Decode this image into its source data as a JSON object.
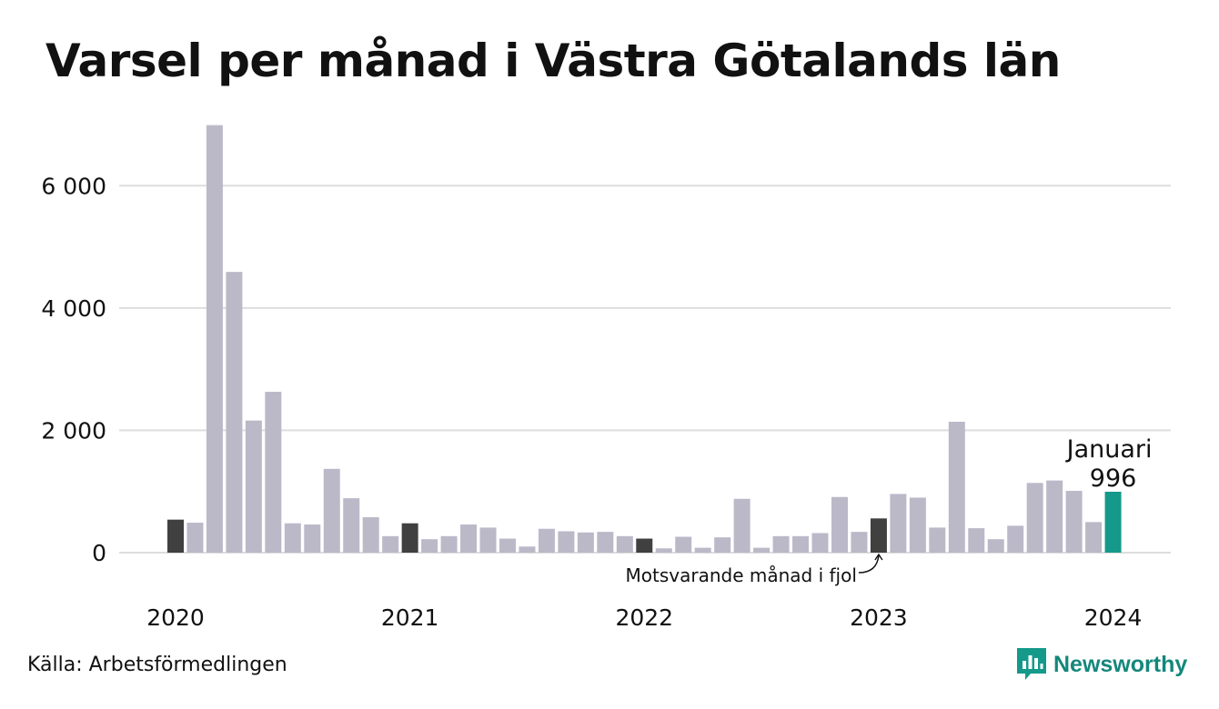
{
  "title": "Varsel per månad i Västra Götalands län",
  "source": "Källa: Arbetsförmedlingen",
  "brand": "Newsworthy",
  "colors": {
    "bar": "#bbb9c8",
    "same_month_last_year": "#404040",
    "current": "#14998a",
    "grid": "#dddddd",
    "brand": "#14998a",
    "brand_text": "#14877b"
  },
  "chart_data": {
    "type": "bar",
    "ylim": [
      0,
      7000
    ],
    "yticks": [
      0,
      2000,
      4000,
      6000
    ],
    "ytick_labels": [
      "0",
      "2 000",
      "4 000",
      "6 000"
    ],
    "grid": true,
    "year_labels": [
      "2020",
      "2021",
      "2022",
      "2023",
      "2024"
    ],
    "months": [
      "2020-01",
      "2020-02",
      "2020-03",
      "2020-04",
      "2020-05",
      "2020-06",
      "2020-07",
      "2020-08",
      "2020-09",
      "2020-10",
      "2020-11",
      "2020-12",
      "2021-01",
      "2021-02",
      "2021-03",
      "2021-04",
      "2021-05",
      "2021-06",
      "2021-07",
      "2021-08",
      "2021-09",
      "2021-10",
      "2021-11",
      "2021-12",
      "2022-01",
      "2022-02",
      "2022-03",
      "2022-04",
      "2022-05",
      "2022-06",
      "2022-07",
      "2022-08",
      "2022-09",
      "2022-10",
      "2022-11",
      "2022-12",
      "2023-01",
      "2023-02",
      "2023-03",
      "2023-04",
      "2023-05",
      "2023-06",
      "2023-07",
      "2023-08",
      "2023-09",
      "2023-10",
      "2023-11",
      "2023-12",
      "2024-01"
    ],
    "values": [
      540,
      490,
      6990,
      4590,
      2160,
      2630,
      480,
      460,
      1370,
      890,
      580,
      270,
      480,
      220,
      270,
      460,
      410,
      230,
      100,
      390,
      350,
      330,
      340,
      270,
      230,
      70,
      260,
      80,
      250,
      880,
      80,
      270,
      270,
      320,
      910,
      340,
      560,
      960,
      900,
      410,
      2140,
      400,
      220,
      440,
      1140,
      1180,
      1010,
      500,
      996
    ],
    "highlight_same_month_last_year": [
      0,
      12,
      24,
      36
    ],
    "highlight_current": 48,
    "annotations": {
      "current_month": "Januari",
      "current_value": "996",
      "same_month_note": "Motsvarande månad i fjol"
    }
  }
}
